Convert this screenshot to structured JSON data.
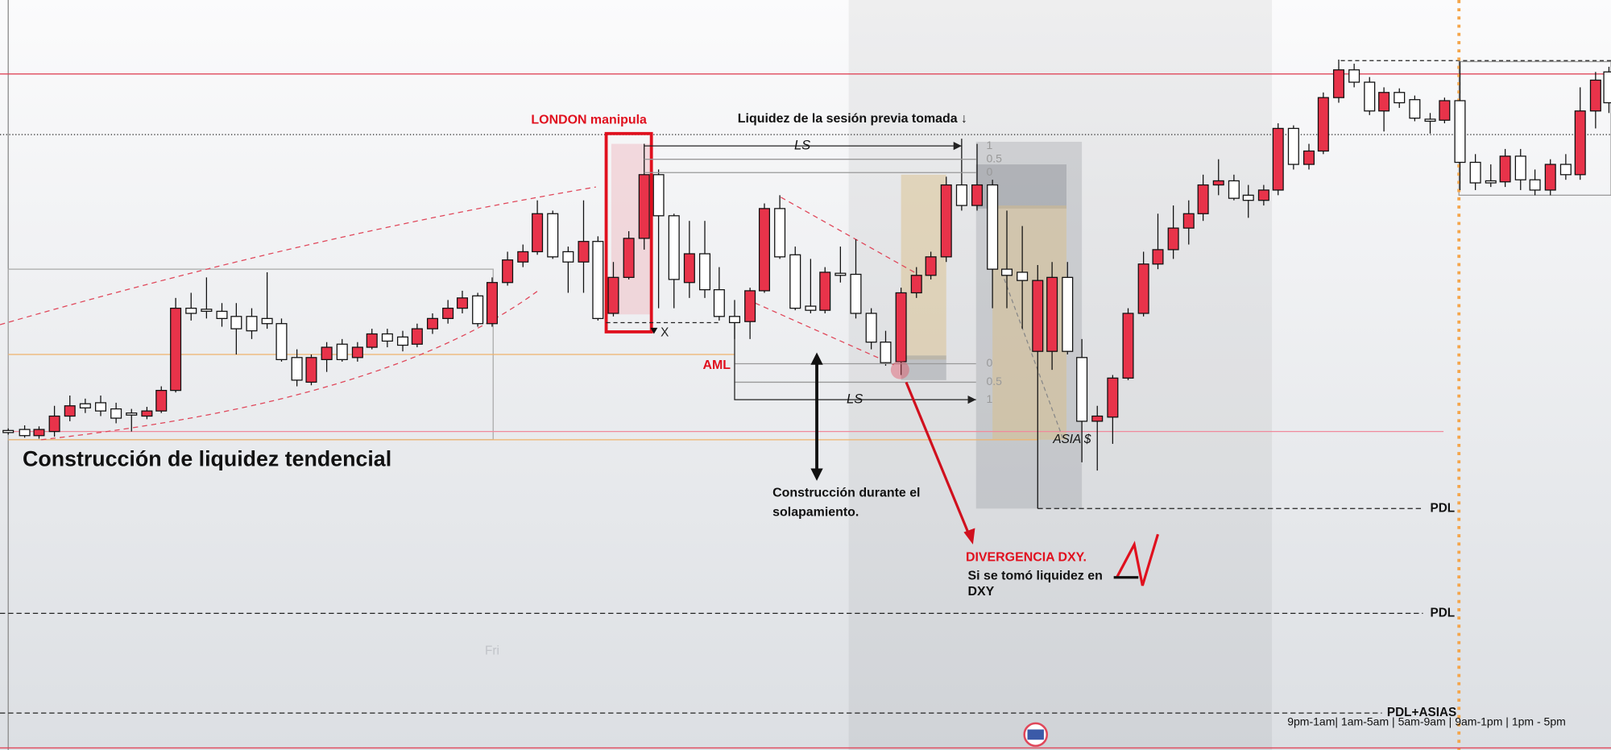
{
  "chart": {
    "title": "Construcción de liquidez tendencial",
    "london_label": "LONDON manipula",
    "previous_session_label": "Liquidez de la sesión previa tomada ↓",
    "ls_labels": [
      "LS",
      "LS"
    ],
    "fib_top": [
      "1",
      "0.5",
      "0"
    ],
    "fib_bottom": [
      "0",
      "0.5",
      "1"
    ],
    "x_marker": "X",
    "aml_label": "AML",
    "overlap_note": [
      "Construcción durante el",
      "solapamiento."
    ],
    "asia_label": "ASIA $",
    "pdl_labels": [
      "PDL",
      "PDL",
      "PDL+ASIAS"
    ],
    "divergence_title": "DIVERGENCIA DXY.",
    "divergence_note": [
      "Si se tomó liquidez en",
      "DXY"
    ],
    "day_label": "Fri",
    "sessions_label": "9pm-1am| 1am-5am | 5am-9am | 9am-1pm | 1pm - 5pm"
  }
}
